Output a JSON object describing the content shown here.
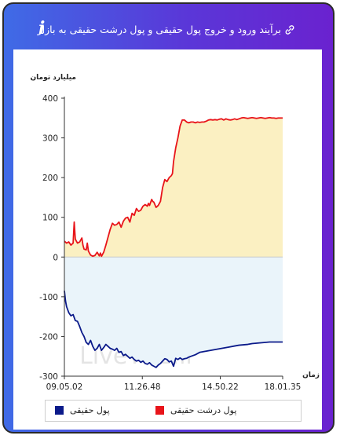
{
  "header": {
    "title": "برآیند ورود و خروج پول حقیقی و پول درشت حقیقی به بازار",
    "info_icon": "info-icon",
    "link_icon": "link-icon"
  },
  "watermark": "LiveTSE.ir",
  "chart_data": {
    "type": "line",
    "ylabel": "میلیارد تومان",
    "xlabel": "زمان",
    "ylim": [
      -300,
      400
    ],
    "yticks": [
      400,
      300,
      200,
      100,
      0,
      -100,
      -200,
      -300
    ],
    "yticklabels": [
      "400",
      "300",
      "200",
      "100",
      "0",
      "-100",
      "-200",
      "-300"
    ],
    "xlim": [
      0,
      100
    ],
    "xticks": [
      0,
      35.7,
      71.4,
      100
    ],
    "xticklabels": [
      "09.05.02",
      "11.26.48",
      "14.50.22",
      "18.01.35"
    ],
    "grid": false,
    "legend_position": "bottom",
    "series": [
      {
        "name": "پول درشت حقیقی",
        "color": "#e8141a",
        "fill": "#fbf0c2",
        "x": [
          0,
          1,
          2,
          3,
          4,
          4.5,
          5,
          5.5,
          6,
          7,
          8,
          8.5,
          9,
          10,
          10.5,
          11,
          12,
          13,
          14,
          15,
          16,
          16.5,
          17,
          18,
          19,
          20,
          21,
          22,
          23,
          24,
          25,
          26,
          27,
          28,
          29,
          30,
          31,
          32,
          33,
          34,
          35,
          36,
          37,
          38,
          38.5,
          39,
          40,
          40.5,
          41,
          42,
          43,
          44,
          45,
          46,
          47,
          48,
          49,
          49.5,
          50,
          51,
          52,
          53,
          54,
          55,
          56,
          57,
          58,
          59,
          60,
          61,
          62,
          63,
          64,
          65,
          66,
          67,
          68,
          69,
          70,
          71,
          72,
          73,
          74,
          75,
          76,
          77,
          78,
          79,
          80,
          81,
          82,
          83,
          84,
          85,
          86,
          87,
          88,
          89,
          90,
          91,
          92,
          93,
          94,
          95,
          96,
          97,
          98,
          99,
          100
        ],
        "values": [
          40,
          35,
          38,
          30,
          35,
          88,
          45,
          40,
          35,
          38,
          48,
          30,
          20,
          18,
          35,
          15,
          5,
          2,
          4,
          12,
          3,
          10,
          2,
          12,
          30,
          50,
          70,
          85,
          80,
          82,
          88,
          75,
          90,
          98,
          100,
          88,
          110,
          105,
          122,
          115,
          118,
          128,
          132,
          128,
          135,
          130,
          145,
          140,
          138,
          125,
          130,
          140,
          175,
          195,
          190,
          200,
          205,
          210,
          240,
          275,
          300,
          330,
          345,
          345,
          340,
          338,
          340,
          340,
          338,
          340,
          339,
          340,
          340,
          342,
          345,
          346,
          345,
          346,
          345,
          347,
          348,
          345,
          348,
          346,
          345,
          346,
          348,
          346,
          348,
          350,
          351,
          350,
          349,
          350,
          351,
          350,
          349,
          350,
          351,
          350,
          349,
          350,
          351,
          350,
          350,
          349,
          350,
          350,
          350
        ]
      },
      {
        "name": "پول حقیقی",
        "color": "#0b1a8a",
        "fill": "#eaf4fa",
        "x": [
          0,
          0.5,
          1,
          2,
          3,
          4,
          5,
          6,
          7,
          8,
          9,
          10,
          11,
          12,
          13,
          14,
          15,
          16,
          17,
          18,
          19,
          20,
          21,
          22,
          23,
          24,
          25,
          26,
          27,
          28,
          29,
          30,
          31,
          32,
          33,
          34,
          35,
          36,
          37,
          38,
          39,
          40,
          41,
          42,
          43,
          44,
          45,
          46,
          47,
          48,
          49,
          50,
          51,
          52,
          53,
          54,
          55,
          56,
          57,
          58,
          59,
          60,
          62,
          64,
          66,
          68,
          70,
          72,
          74,
          76,
          78,
          80,
          82,
          84,
          86,
          88,
          90,
          92,
          94,
          96,
          98,
          100
        ],
        "values": [
          -85,
          -110,
          -125,
          -140,
          -148,
          -145,
          -160,
          -162,
          -175,
          -190,
          -200,
          -215,
          -220,
          -210,
          -225,
          -235,
          -230,
          -220,
          -235,
          -228,
          -220,
          -225,
          -230,
          -232,
          -235,
          -230,
          -240,
          -238,
          -248,
          -245,
          -250,
          -255,
          -252,
          -258,
          -262,
          -260,
          -265,
          -262,
          -268,
          -270,
          -266,
          -272,
          -275,
          -278,
          -272,
          -268,
          -262,
          -256,
          -258,
          -264,
          -262,
          -275,
          -255,
          -258,
          -254,
          -258,
          -256,
          -255,
          -252,
          -250,
          -248,
          -246,
          -240,
          -238,
          -236,
          -234,
          -232,
          -230,
          -228,
          -226,
          -224,
          -222,
          -221,
          -220,
          -218,
          -217,
          -216,
          -215,
          -214,
          -214,
          -214,
          -214
        ]
      }
    ]
  },
  "legend": {
    "real_money": "پول حقیقی",
    "big_real_money": "پول درشت حقیقی"
  }
}
